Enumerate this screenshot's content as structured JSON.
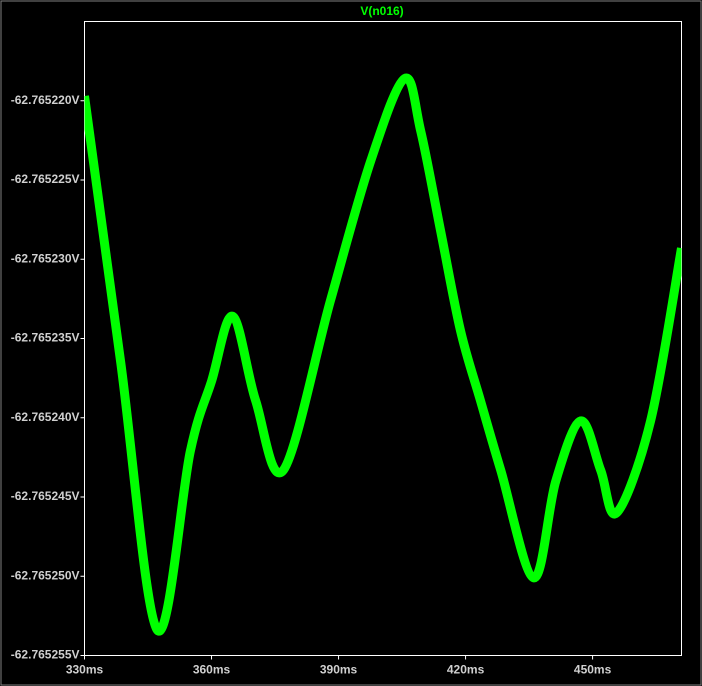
{
  "chart_data": {
    "type": "line",
    "title": "V(n016)",
    "x": [
      330,
      338.5,
      347.2,
      355,
      360,
      365,
      370.4,
      377,
      388.1,
      397.6,
      405.6,
      409.4,
      414.1,
      418.8,
      423.5,
      428.3,
      436.1,
      441.3,
      447.2,
      451.9,
      455.7,
      463.7,
      471
    ],
    "series": [
      {
        "name": "V(n016)",
        "color": "#00ff00",
        "values": [
          -62.7652197,
          -62.7652364,
          -62.7652534,
          -62.7652421,
          -62.7652377,
          -62.7652336,
          -62.7652389,
          -62.7652433,
          -62.7652326,
          -62.7652238,
          -62.7652186,
          -62.7652219,
          -62.7652282,
          -62.7652345,
          -62.7652389,
          -62.7652433,
          -62.7652501,
          -62.765244,
          -62.7652402,
          -62.7652433,
          -62.765246,
          -62.7652402,
          -62.7652293
        ]
      }
    ],
    "xlim": [
      330,
      471
    ],
    "ylim": [
      -62.765255,
      -62.765215
    ],
    "xticks": [
      {
        "value": 330,
        "label": "330ms"
      },
      {
        "value": 360,
        "label": "360ms"
      },
      {
        "value": 390,
        "label": "390ms"
      },
      {
        "value": 420,
        "label": "420ms"
      },
      {
        "value": 450,
        "label": "450ms"
      }
    ],
    "yticks": [
      {
        "value": -62.76522,
        "label": "-62.765220V"
      },
      {
        "value": -62.765225,
        "label": "-62.765225V"
      },
      {
        "value": -62.76523,
        "label": "-62.765230V"
      },
      {
        "value": -62.765235,
        "label": "-62.765235V"
      },
      {
        "value": -62.76524,
        "label": "-62.765240V"
      },
      {
        "value": -62.765245,
        "label": "-62.765245V"
      },
      {
        "value": -62.76525,
        "label": "-62.765250V"
      },
      {
        "value": -62.765255,
        "label": "-62.765255V"
      }
    ],
    "grid": false
  }
}
